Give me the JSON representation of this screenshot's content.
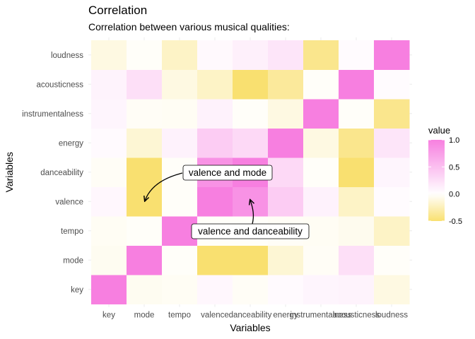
{
  "chart_data": {
    "type": "heatmap",
    "title": "Correlation",
    "subtitle": "Correlation between various musical qualities:",
    "xlabel": "Variables",
    "ylabel": "Variables",
    "x_categories": [
      "key",
      "mode",
      "tempo",
      "valence",
      "danceability",
      "energy",
      "instrumentalness",
      "acousticness",
      "loudness"
    ],
    "y_categories": [
      "key",
      "mode",
      "tempo",
      "valence",
      "danceability",
      "energy",
      "instrumentalness",
      "acousticness",
      "loudness"
    ],
    "values": [
      [
        1.0,
        -0.05,
        -0.04,
        0.06,
        -0.03,
        0.04,
        0.08,
        0.09,
        -0.1
      ],
      [
        -0.05,
        1.0,
        -0.02,
        -0.5,
        -0.5,
        -0.15,
        -0.03,
        0.25,
        -0.02
      ],
      [
        -0.04,
        -0.02,
        1.0,
        -0.02,
        -0.02,
        -0.03,
        -0.04,
        -0.06,
        -0.2
      ],
      [
        0.06,
        -0.5,
        -0.02,
        1.0,
        0.85,
        0.4,
        0.1,
        -0.2,
        0.03
      ],
      [
        -0.03,
        -0.5,
        -0.02,
        0.85,
        1.0,
        0.3,
        -0.02,
        -0.5,
        0.08
      ],
      [
        0.04,
        -0.15,
        0.1,
        0.4,
        0.3,
        1.0,
        -0.1,
        -0.4,
        0.2
      ],
      [
        0.08,
        -0.03,
        -0.04,
        0.1,
        -0.02,
        -0.1,
        1.0,
        -0.02,
        -0.4
      ],
      [
        0.09,
        0.25,
        -0.1,
        -0.2,
        -0.5,
        -0.35,
        -0.02,
        1.0,
        0.03
      ],
      [
        -0.1,
        -0.02,
        -0.2,
        0.05,
        0.12,
        0.2,
        -0.4,
        0.03,
        1.0
      ]
    ],
    "color_scale": {
      "title": "value",
      "low": "#f9e070",
      "mid": "#ffffff",
      "high": "#f77fe0",
      "limits": [
        -0.5,
        1.0
      ],
      "ticks": [
        "1.0",
        "0.5",
        "0.0",
        "-0.5"
      ],
      "tick_values": [
        1.0,
        0.5,
        0.0,
        -0.5
      ]
    },
    "legend_placement": "right",
    "grid": true,
    "annotations": [
      {
        "text": "valence and mode",
        "target_x": "mode",
        "target_y": "valence"
      },
      {
        "text": "valence and danceability",
        "target_x": "danceability",
        "target_y": "valence"
      }
    ]
  }
}
